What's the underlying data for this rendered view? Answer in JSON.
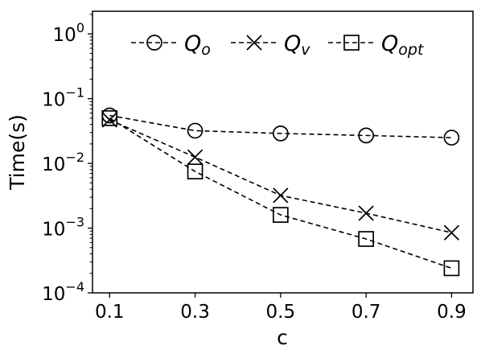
{
  "chart_data": {
    "type": "line",
    "title": "",
    "xlabel": "c",
    "ylabel": "Time(s)",
    "x": [
      0.1,
      0.3,
      0.5,
      0.7,
      0.9
    ],
    "x_tick_labels": [
      "0.1",
      "0.3",
      "0.5",
      "0.7",
      "0.9"
    ],
    "ylim": [
      0.0001,
      1
    ],
    "yscale": "log",
    "y_ticks": [
      {
        "base": "10",
        "exp": "0"
      },
      {
        "base": "10",
        "exp": "−1"
      },
      {
        "base": "10",
        "exp": "−2"
      },
      {
        "base": "10",
        "exp": "−3"
      },
      {
        "base": "10",
        "exp": "−4"
      }
    ],
    "grid": false,
    "legend_placement": "top",
    "series": [
      {
        "name": "Q",
        "name_sub": "o",
        "marker": "circle",
        "values": [
          0.055,
          0.032,
          0.029,
          0.027,
          0.025
        ]
      },
      {
        "name": "Q",
        "name_sub": "v",
        "marker": "x",
        "values": [
          0.047,
          0.0125,
          0.0032,
          0.0017,
          0.00085
        ]
      },
      {
        "name": "Q",
        "name_sub": "opt",
        "marker": "square",
        "values": [
          0.05,
          0.0075,
          0.0016,
          0.00068,
          0.00024
        ]
      }
    ]
  }
}
